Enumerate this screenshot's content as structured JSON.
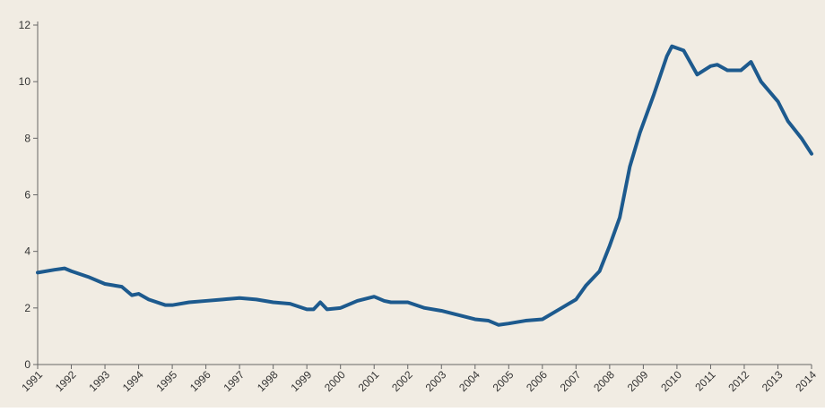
{
  "chart_data": {
    "type": "line",
    "x": [
      1991.0,
      1991.5,
      1991.8,
      1992.0,
      1992.5,
      1993.0,
      1993.5,
      1993.8,
      1994.0,
      1994.3,
      1994.8,
      1995.0,
      1995.5,
      1996.0,
      1996.5,
      1997.0,
      1997.5,
      1998.0,
      1998.5,
      1999.0,
      1999.2,
      1999.4,
      1999.6,
      2000.0,
      2000.5,
      2001.0,
      2001.3,
      2001.5,
      2002.0,
      2002.5,
      2003.0,
      2003.5,
      2004.0,
      2004.4,
      2004.7,
      2005.0,
      2005.5,
      2006.0,
      2006.5,
      2007.0,
      2007.3,
      2007.7,
      2008.0,
      2008.3,
      2008.6,
      2008.9,
      2009.3,
      2009.7,
      2009.85,
      2010.2,
      2010.6,
      2011.0,
      2011.2,
      2011.5,
      2011.9,
      2012.2,
      2012.5,
      2013.0,
      2013.3,
      2013.7,
      2014.0
    ],
    "series": [
      {
        "color": "#1d5a8e",
        "values": [
          3.25,
          3.35,
          3.4,
          3.3,
          3.1,
          2.85,
          2.75,
          2.45,
          2.5,
          2.3,
          2.1,
          2.1,
          2.2,
          2.25,
          2.3,
          2.35,
          2.3,
          2.2,
          2.15,
          1.95,
          1.95,
          2.2,
          1.95,
          2.0,
          2.25,
          2.4,
          2.25,
          2.2,
          2.2,
          2.0,
          1.9,
          1.75,
          1.6,
          1.55,
          1.4,
          1.45,
          1.55,
          1.6,
          1.95,
          2.3,
          2.8,
          3.3,
          4.2,
          5.2,
          7.0,
          8.2,
          9.5,
          10.9,
          11.25,
          11.1,
          10.25,
          10.55,
          10.6,
          10.4,
          10.4,
          10.7,
          10.0,
          9.3,
          8.6,
          8.0,
          7.45
        ]
      }
    ],
    "xlim": [
      1991,
      2014
    ],
    "xticks": [
      1991,
      1992,
      1993,
      1994,
      1995,
      1996,
      1997,
      1998,
      1999,
      2000,
      2001,
      2002,
      2003,
      2004,
      2005,
      2006,
      2007,
      2008,
      2009,
      2010,
      2011,
      2012,
      2013,
      2014
    ],
    "ylim": [
      0,
      12
    ],
    "yticks": [
      0,
      2,
      4,
      6,
      8,
      10,
      12
    ],
    "background": "#f1ece3"
  }
}
